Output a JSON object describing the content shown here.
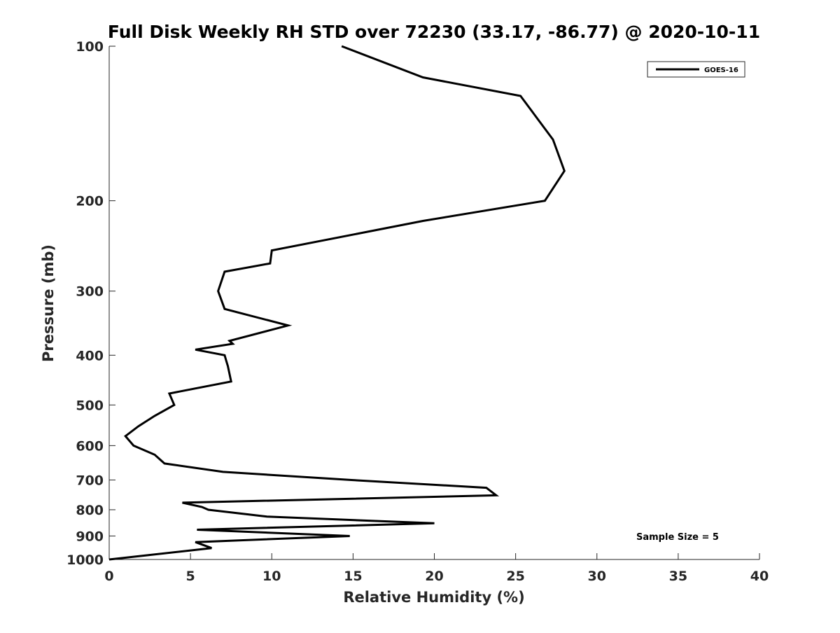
{
  "chart_data": {
    "type": "line",
    "title": "Full Disk Weekly RH STD over 72230 (33.17, -86.77) @ 2020-10-11",
    "xlabel": "Relative Humidity (%)",
    "ylabel": "Pressure (mb)",
    "xlim": [
      0,
      40
    ],
    "ylim": [
      100,
      1000
    ],
    "y_scale": "log",
    "y_reversed": true,
    "x_ticks": [
      0,
      5,
      10,
      15,
      20,
      25,
      30,
      35,
      40
    ],
    "x_tick_labels": [
      "0",
      "5",
      "10",
      "15",
      "20",
      "25",
      "30",
      "35",
      "40"
    ],
    "y_ticks": [
      100,
      200,
      300,
      400,
      500,
      600,
      700,
      800,
      900,
      1000
    ],
    "y_tick_labels": [
      "100",
      "200",
      "300",
      "400",
      "500",
      "600",
      "700",
      "800",
      "900",
      "1000"
    ],
    "grid": false,
    "legend_position": "top-right",
    "series": [
      {
        "name": "GOES-16",
        "color": "#000000",
        "x": [
          14.3,
          19.3,
          25.3,
          27.3,
          28.0,
          26.8,
          19.3,
          10.0,
          9.9,
          7.1,
          6.7,
          7.1,
          11.0,
          7.4,
          7.6,
          5.3,
          7.1,
          7.2,
          7.3,
          7.5,
          3.7,
          4.0,
          2.8,
          1.8,
          1.0,
          1.5,
          2.8,
          3.4,
          7.0,
          14.9,
          23.2,
          23.8,
          4.5,
          5.7,
          6.1,
          9.7,
          20.0,
          5.4,
          14.8,
          5.3,
          6.3,
          0.0
        ],
        "y": [
          100,
          115,
          125,
          152,
          175,
          200,
          219,
          250,
          265,
          275,
          300,
          325,
          350,
          375,
          380,
          390,
          400,
          410,
          420,
          450,
          475,
          500,
          525,
          550,
          575,
          600,
          625,
          650,
          675,
          700,
          725,
          750,
          775,
          790,
          800,
          825,
          850,
          875,
          900,
          925,
          950,
          1000
        ]
      }
    ],
    "annotations": [
      {
        "text": "Sample Size = 5"
      }
    ]
  }
}
